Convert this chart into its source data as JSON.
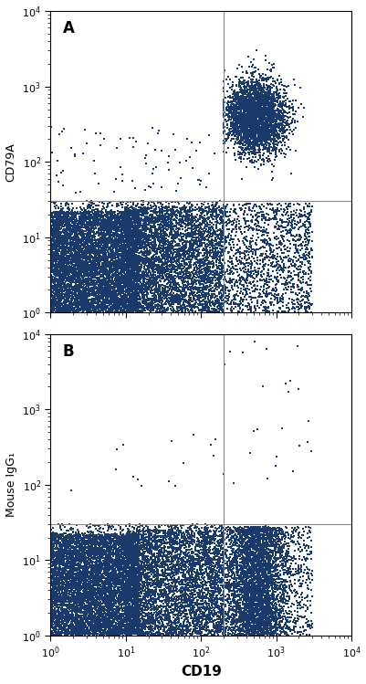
{
  "panel_A_label": "A",
  "panel_B_label": "B",
  "xlabel": "CD19",
  "ylabel_A": "CD79A",
  "ylabel_B": "Mouse IgG₁",
  "xlim": [
    1,
    10000
  ],
  "ylim": [
    1,
    10000
  ],
  "dot_color": "#1a3a6b",
  "dot_size": 4.5,
  "gate_x": 200,
  "gate_y_A": 30,
  "gate_y_B": 30,
  "gate_color": "#888888",
  "gate_lw": 0.8,
  "background_color": "#ffffff",
  "seed_A": 42,
  "seed_B": 99
}
